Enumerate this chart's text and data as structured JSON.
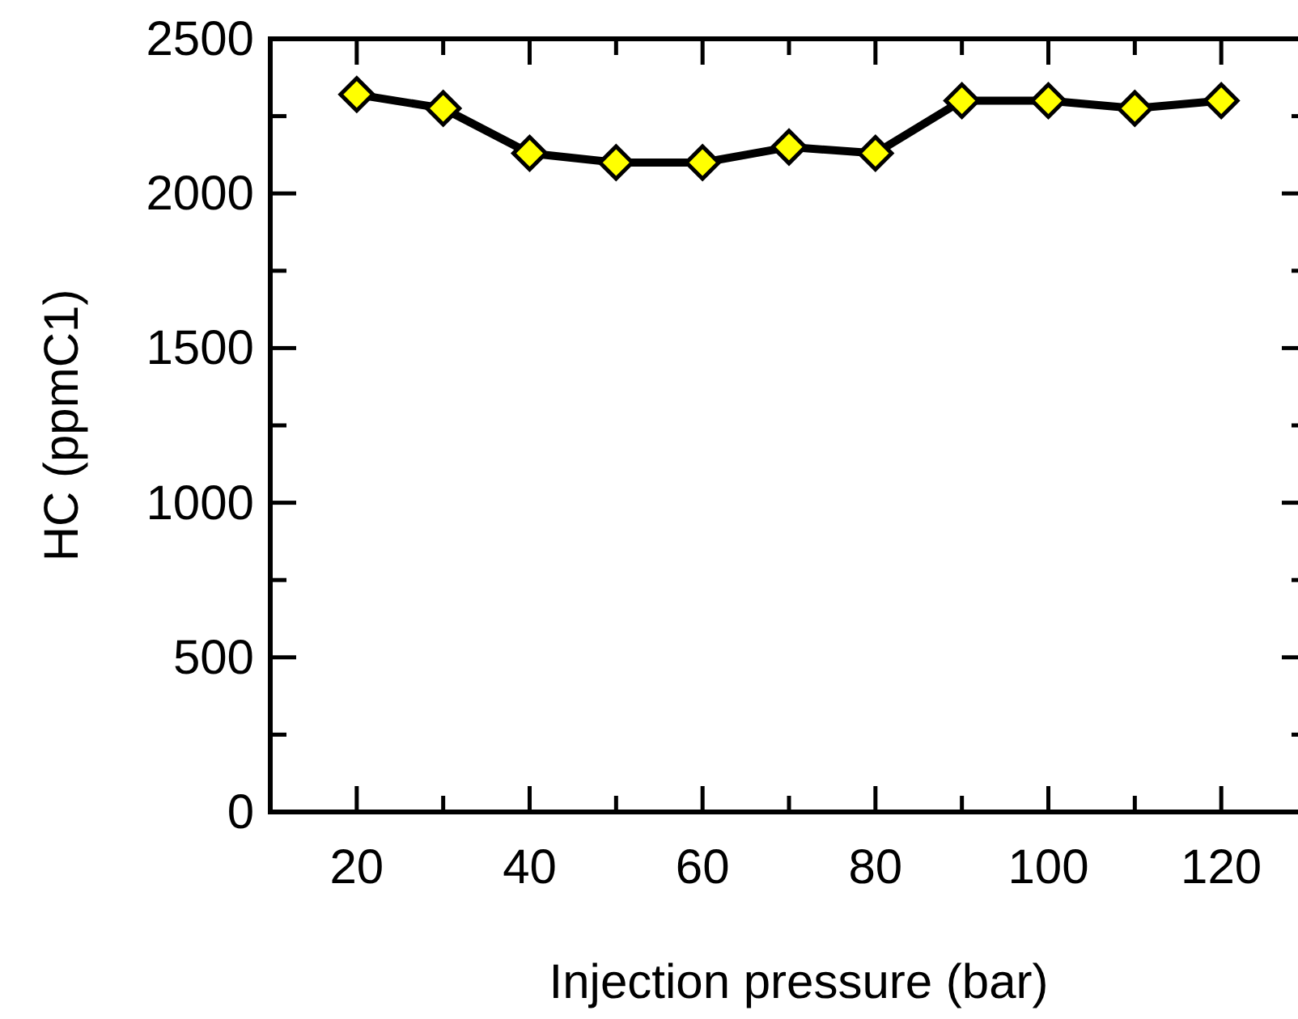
{
  "chart_data": {
    "type": "line",
    "xlabel": "Injection pressure (bar)",
    "ylabel": "HC (ppmC1)",
    "x": [
      20,
      30,
      40,
      50,
      60,
      70,
      80,
      90,
      100,
      110,
      120
    ],
    "series": [
      {
        "color": "#ffff00",
        "values": [
          2320,
          2275,
          2130,
          2100,
          2100,
          2150,
          2130,
          2300,
          2300,
          2275,
          2300
        ]
      }
    ],
    "xlim": [
      10,
      130
    ],
    "xticks": [
      20,
      {
        "value": 30,
        "label": null
      },
      40,
      {
        "value": 50,
        "label": null
      },
      60,
      {
        "value": 70,
        "label": null
      },
      80,
      {
        "value": 90,
        "label": null
      },
      100,
      {
        "value": 110,
        "label": null
      },
      120
    ],
    "ylim": [
      0,
      2500
    ],
    "yticks": [
      0,
      {
        "value": 250,
        "label": null
      },
      500,
      {
        "value": 750,
        "label": null
      },
      1000,
      {
        "value": 1250,
        "label": null
      },
      1500,
      {
        "value": 1750,
        "label": null
      },
      2000,
      {
        "value": 2250,
        "label": null
      },
      2500
    ],
    "marker": "diamond",
    "line_style": "solid",
    "grid": false
  }
}
